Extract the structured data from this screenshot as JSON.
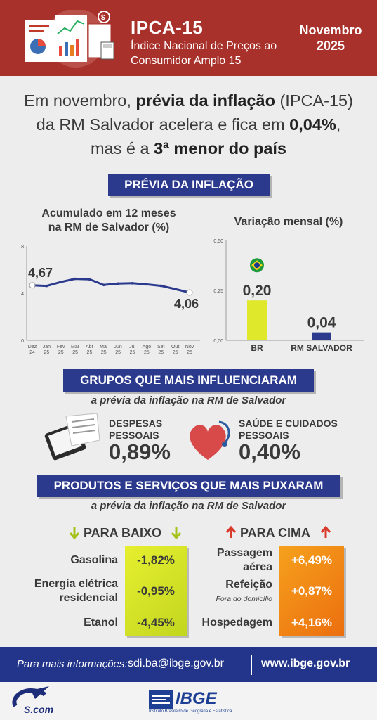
{
  "header": {
    "title": "IPCA-15",
    "subtitle_line1": "Índice Nacional de Preços ao",
    "subtitle_line2": "Consumidor Amplo 15",
    "month": "Novembro",
    "year": "2025"
  },
  "headline": {
    "l1_a": "Em novembro, ",
    "l1_b": "prévia da inflação",
    "l1_c": " (IPCA-15)",
    "l2_a": "da RM Salvador acelera e fica em ",
    "l2_b": "0,04%",
    "l2_c": ",",
    "l3_a": "mas é a ",
    "l3_b": "3ª menor do país"
  },
  "section_previa": "PRÉVIA DA INFLAÇÃO",
  "section_grupos": "GRUPOS QUE MAIS INFLUENCIARAM",
  "section_produtos": "PRODUTOS E SERVIÇOS QUE MAIS PUXARAM",
  "subtitle_rm": "a prévia da inflação na RM de Salvador",
  "chart_data": [
    {
      "type": "line",
      "title_line1": "Acumulado em 12 meses",
      "title_line2": "na RM de Salvador (%)",
      "categories": [
        "Dez 24",
        "Jan 25",
        "Fev 25",
        "Mar 25",
        "Abr 25",
        "Mai 25",
        "Jun 25",
        "Jul 25",
        "Ago 25",
        "Set 25",
        "Out 25",
        "Nov 25"
      ],
      "cat_top": [
        "Dez",
        "Jan",
        "Fev",
        "Mar",
        "Abr",
        "Mai",
        "Jun",
        "Jul",
        "Ago",
        "Set",
        "Out",
        "Nov"
      ],
      "cat_bottom": [
        "24",
        "25",
        "25",
        "25",
        "25",
        "25",
        "25",
        "25",
        "25",
        "25",
        "25",
        "25"
      ],
      "values": [
        4.67,
        4.62,
        4.95,
        5.22,
        5.18,
        4.7,
        4.82,
        4.85,
        4.75,
        4.63,
        4.35,
        4.06
      ],
      "first_label": "4,67",
      "last_label": "4,06",
      "yticks": [
        "0",
        "4",
        "8"
      ],
      "ylim": [
        0,
        8
      ],
      "color": "#2c3a8e"
    },
    {
      "type": "bar",
      "title": "Variação mensal (%)",
      "categories": [
        "BR",
        "RM SALVADOR"
      ],
      "values": [
        0.2,
        0.04
      ],
      "data_labels": [
        "0,20",
        "0,04"
      ],
      "yticks": [
        "0,00",
        "0,25",
        "0,50"
      ],
      "ylim": [
        0,
        0.5
      ],
      "colors": [
        "#dfe82a",
        "#2c3a8e"
      ]
    }
  ],
  "grupos": [
    {
      "label_1": "DESPESAS",
      "label_2": "PESSOAIS",
      "value": "0,89%"
    },
    {
      "label_1": "SAÚDE E CUIDADOS",
      "label_2": "PESSOAIS",
      "value": "0,40%"
    }
  ],
  "baixo": {
    "title": "PARA BAIXO",
    "items": [
      {
        "name": "Gasolina",
        "value": "-1,82%"
      },
      {
        "name_1": "Energia elétrica",
        "name_2": "residencial",
        "value": "-0,95%"
      },
      {
        "name": "Etanol",
        "value": "-4,45%"
      }
    ]
  },
  "cima": {
    "title": "PARA CIMA",
    "items": [
      {
        "name_1": "Passagem",
        "name_2": "aérea",
        "value": "+6,49%"
      },
      {
        "name": "Refeição",
        "note": "Fora do domicílio",
        "value": "+0,87%"
      },
      {
        "name": "Hospedagem",
        "value": "+4,16%"
      }
    ]
  },
  "footer": {
    "label": "Para mais informações:",
    "email": "sdi.ba@ibge.gov.br",
    "site": "www.ibge.gov.br"
  },
  "logos": {
    "ibge": "IBGE",
    "ibge_sub": "Instituto Brasileiro de Geografia e Estatística",
    "left": "S.com"
  },
  "colors": {
    "header": "#a8322b",
    "navy": "#2c3a8e",
    "green_arrow": "#a4c21a",
    "red_arrow": "#d93a2b"
  }
}
